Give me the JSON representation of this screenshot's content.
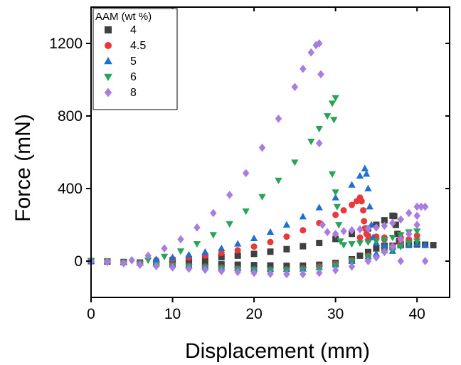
{
  "chart_data": {
    "type": "scatter",
    "xlabel": "Displacement (mm)",
    "ylabel": "Force (mN)",
    "xlim": [
      0,
      44
    ],
    "ylim": [
      -200,
      1400
    ],
    "xticks": [
      0,
      10,
      20,
      30,
      40
    ],
    "yticks": [
      0,
      400,
      800,
      1200
    ],
    "grid": false,
    "legend": {
      "title": "AAM (wt %)",
      "position": "top-left"
    },
    "series": [
      {
        "name": "4",
        "color": "#404040",
        "marker": "square",
        "points": [
          [
            0,
            0
          ],
          [
            2,
            -2
          ],
          [
            4,
            -5
          ],
          [
            6,
            -8
          ],
          [
            8,
            -10
          ],
          [
            10,
            -12
          ],
          [
            12,
            -14
          ],
          [
            14,
            -16
          ],
          [
            16,
            -18
          ],
          [
            18,
            -20
          ],
          [
            20,
            -22
          ],
          [
            22,
            -24
          ],
          [
            24,
            -26
          ],
          [
            26,
            -25
          ],
          [
            28,
            -20
          ],
          [
            30,
            -10
          ],
          [
            32,
            10
          ],
          [
            33,
            30
          ],
          [
            34,
            50
          ],
          [
            35,
            70
          ],
          [
            36,
            80
          ],
          [
            37,
            85
          ],
          [
            38,
            88
          ],
          [
            39,
            90
          ],
          [
            40,
            92
          ],
          [
            41,
            90
          ],
          [
            42,
            88
          ],
          [
            38,
            90
          ],
          [
            36,
            85
          ],
          [
            10,
            5
          ],
          [
            12,
            10
          ],
          [
            14,
            15
          ],
          [
            16,
            22
          ],
          [
            18,
            30
          ],
          [
            20,
            40
          ],
          [
            22,
            52
          ],
          [
            24,
            66
          ],
          [
            26,
            82
          ],
          [
            28,
            100
          ],
          [
            30,
            122
          ],
          [
            32,
            150
          ],
          [
            34,
            180
          ],
          [
            35,
            200
          ],
          [
            36,
            225
          ],
          [
            37,
            250
          ],
          [
            37.2,
            248
          ],
          [
            37.4,
            200
          ],
          [
            37.6,
            150
          ],
          [
            37.8,
            110
          ],
          [
            38,
            95
          ]
        ]
      },
      {
        "name": "4.5",
        "color": "#e8393c",
        "marker": "circle",
        "points": [
          [
            0,
            0
          ],
          [
            2,
            -2
          ],
          [
            4,
            -5
          ],
          [
            6,
            -10
          ],
          [
            8,
            -15
          ],
          [
            10,
            -20
          ],
          [
            12,
            -25
          ],
          [
            14,
            -30
          ],
          [
            16,
            -35
          ],
          [
            18,
            -40
          ],
          [
            20,
            -45
          ],
          [
            22,
            -47
          ],
          [
            24,
            -45
          ],
          [
            26,
            -40
          ],
          [
            28,
            -30
          ],
          [
            30,
            -15
          ],
          [
            32,
            5
          ],
          [
            34,
            30
          ],
          [
            36,
            60
          ],
          [
            37,
            80
          ],
          [
            38,
            100
          ],
          [
            39,
            120
          ],
          [
            40,
            140
          ],
          [
            38,
            130
          ],
          [
            36,
            120
          ],
          [
            34,
            115
          ],
          [
            33,
            130
          ],
          [
            8,
            5
          ],
          [
            10,
            12
          ],
          [
            12,
            20
          ],
          [
            14,
            30
          ],
          [
            16,
            45
          ],
          [
            18,
            60
          ],
          [
            20,
            80
          ],
          [
            22,
            105
          ],
          [
            24,
            135
          ],
          [
            26,
            170
          ],
          [
            28,
            210
          ],
          [
            30,
            255
          ],
          [
            31,
            280
          ],
          [
            32,
            310
          ],
          [
            32.6,
            330
          ],
          [
            33,
            350
          ],
          [
            33.2,
            330
          ],
          [
            33.4,
            280
          ],
          [
            33.5,
            220
          ],
          [
            33.6,
            180
          ],
          [
            33.8,
            150
          ],
          [
            34,
            140
          ],
          [
            35,
            135
          ],
          [
            36,
            130
          ]
        ]
      },
      {
        "name": "5",
        "color": "#1e6fcf",
        "marker": "triangle-up",
        "points": [
          [
            0,
            0
          ],
          [
            2,
            -2
          ],
          [
            4,
            -6
          ],
          [
            6,
            -10
          ],
          [
            8,
            -15
          ],
          [
            10,
            -20
          ],
          [
            12,
            -25
          ],
          [
            14,
            -30
          ],
          [
            16,
            -35
          ],
          [
            18,
            -40
          ],
          [
            20,
            -43
          ],
          [
            22,
            -45
          ],
          [
            24,
            -45
          ],
          [
            26,
            -43
          ],
          [
            28,
            -35
          ],
          [
            30,
            -20
          ],
          [
            32,
            0
          ],
          [
            34,
            25
          ],
          [
            35,
            40
          ],
          [
            36,
            60
          ],
          [
            37,
            75
          ],
          [
            38,
            85
          ],
          [
            39,
            92
          ],
          [
            40,
            95
          ],
          [
            41,
            90
          ],
          [
            37,
            55
          ],
          [
            8,
            10
          ],
          [
            10,
            20
          ],
          [
            12,
            35
          ],
          [
            14,
            50
          ],
          [
            16,
            70
          ],
          [
            18,
            95
          ],
          [
            20,
            125
          ],
          [
            22,
            160
          ],
          [
            24,
            200
          ],
          [
            26,
            245
          ],
          [
            28,
            295
          ],
          [
            30,
            350
          ],
          [
            32,
            420
          ],
          [
            33,
            470
          ],
          [
            33.6,
            510
          ],
          [
            33.8,
            480
          ],
          [
            34,
            400
          ],
          [
            34.2,
            300
          ],
          [
            34.4,
            200
          ],
          [
            34.6,
            130
          ],
          [
            35,
            100
          ],
          [
            36,
            90
          ]
        ]
      },
      {
        "name": "6",
        "color": "#27a35a",
        "marker": "triangle-down",
        "points": [
          [
            0,
            0
          ],
          [
            2,
            -3
          ],
          [
            4,
            -8
          ],
          [
            6,
            -15
          ],
          [
            8,
            -20
          ],
          [
            10,
            -25
          ],
          [
            12,
            -30
          ],
          [
            14,
            -35
          ],
          [
            16,
            -40
          ],
          [
            18,
            -45
          ],
          [
            20,
            -48
          ],
          [
            22,
            -50
          ],
          [
            24,
            -50
          ],
          [
            26,
            -48
          ],
          [
            28,
            -40
          ],
          [
            30,
            -25
          ],
          [
            32,
            0
          ],
          [
            34,
            25
          ],
          [
            36,
            50
          ],
          [
            37,
            65
          ],
          [
            38,
            80
          ],
          [
            39,
            100
          ],
          [
            40,
            110
          ],
          [
            7,
            5
          ],
          [
            9,
            25
          ],
          [
            11,
            55
          ],
          [
            13,
            95
          ],
          [
            15,
            145
          ],
          [
            17,
            205
          ],
          [
            19,
            275
          ],
          [
            21,
            355
          ],
          [
            23,
            445
          ],
          [
            25,
            545
          ],
          [
            27,
            660
          ],
          [
            28,
            730
          ],
          [
            29,
            800
          ],
          [
            29.6,
            870
          ],
          [
            30,
            900
          ],
          [
            29.8,
            780
          ],
          [
            29.6,
            480
          ],
          [
            30,
            380
          ],
          [
            30.2,
            300
          ],
          [
            30.4,
            200
          ],
          [
            30.6,
            110
          ],
          [
            31,
            90
          ],
          [
            32,
            95
          ],
          [
            33,
            100
          ],
          [
            34,
            105
          ],
          [
            35,
            110
          ],
          [
            36,
            118
          ],
          [
            37,
            130
          ],
          [
            38,
            145
          ],
          [
            39,
            160
          ],
          [
            40,
            165
          ]
        ]
      },
      {
        "name": "8",
        "color": "#a97de0",
        "marker": "diamond",
        "points": [
          [
            0,
            0
          ],
          [
            2,
            -5
          ],
          [
            4,
            -12
          ],
          [
            6,
            -20
          ],
          [
            8,
            -28
          ],
          [
            10,
            -35
          ],
          [
            12,
            -42
          ],
          [
            14,
            -48
          ],
          [
            16,
            -55
          ],
          [
            18,
            -60
          ],
          [
            20,
            -65
          ],
          [
            22,
            -70
          ],
          [
            24,
            -72
          ],
          [
            26,
            -72
          ],
          [
            28,
            -65
          ],
          [
            30,
            -50
          ],
          [
            32,
            -30
          ],
          [
            34,
            0
          ],
          [
            35,
            20
          ],
          [
            36,
            50
          ],
          [
            37,
            80
          ],
          [
            38,
            120
          ],
          [
            39,
            150
          ],
          [
            40,
            250
          ],
          [
            40.5,
            300
          ],
          [
            41,
            300
          ],
          [
            40,
            200
          ],
          [
            41,
            0
          ],
          [
            38,
            0
          ],
          [
            5,
            5
          ],
          [
            7,
            30
          ],
          [
            9,
            70
          ],
          [
            11,
            120
          ],
          [
            13,
            185
          ],
          [
            15,
            265
          ],
          [
            17,
            365
          ],
          [
            19,
            485
          ],
          [
            21,
            625
          ],
          [
            23,
            785
          ],
          [
            25,
            960
          ],
          [
            26,
            1060
          ],
          [
            27,
            1150
          ],
          [
            27.6,
            1190
          ],
          [
            28,
            1200
          ],
          [
            28.2,
            1030
          ],
          [
            28,
            650
          ],
          [
            28.4,
            200
          ],
          [
            29,
            160
          ],
          [
            30,
            150
          ],
          [
            31,
            165
          ],
          [
            32,
            170
          ],
          [
            33,
            175
          ],
          [
            34,
            180
          ],
          [
            35,
            185
          ],
          [
            36,
            195
          ],
          [
            37,
            210
          ],
          [
            38,
            230
          ],
          [
            39,
            265
          ],
          [
            40,
            300
          ]
        ]
      }
    ]
  }
}
